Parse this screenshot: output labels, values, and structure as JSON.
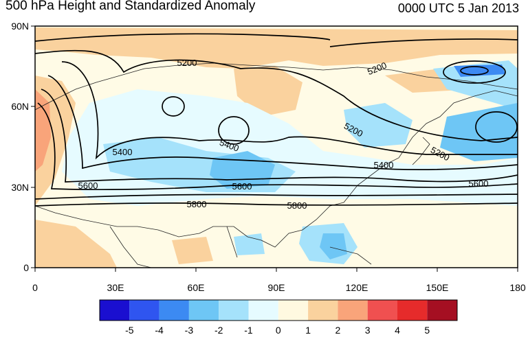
{
  "header": {
    "title": "500 hPa Height and Standardized Anomaly",
    "timestamp": "0000 UTC 5 Jan 2013"
  },
  "map": {
    "lon_range": [
      0,
      180
    ],
    "lat_range": [
      0,
      90
    ],
    "x_ticks": [
      "0",
      "30E",
      "60E",
      "90E",
      "120E",
      "150E",
      "180"
    ],
    "y_ticks": [
      "0",
      "30N",
      "60N",
      "90N"
    ]
  },
  "contours": {
    "labels": [
      "5200",
      "5200",
      "5200",
      "5200",
      "5400",
      "5400",
      "5400",
      "5600",
      "5600",
      "5600",
      "5800",
      "5800"
    ]
  },
  "colorbar": {
    "labels": [
      "-5",
      "-4",
      "-3",
      "-2",
      "-1",
      "0",
      "1",
      "2",
      "3",
      "4",
      "5"
    ],
    "colors": [
      "#1a0fd0",
      "#2f55f0",
      "#3c8af2",
      "#6ec6f5",
      "#a5e2fb",
      "#e6fbff",
      "#fff9e0",
      "#fad29e",
      "#f9a47a",
      "#f05050",
      "#e62b2b",
      "#a50f22"
    ]
  }
}
